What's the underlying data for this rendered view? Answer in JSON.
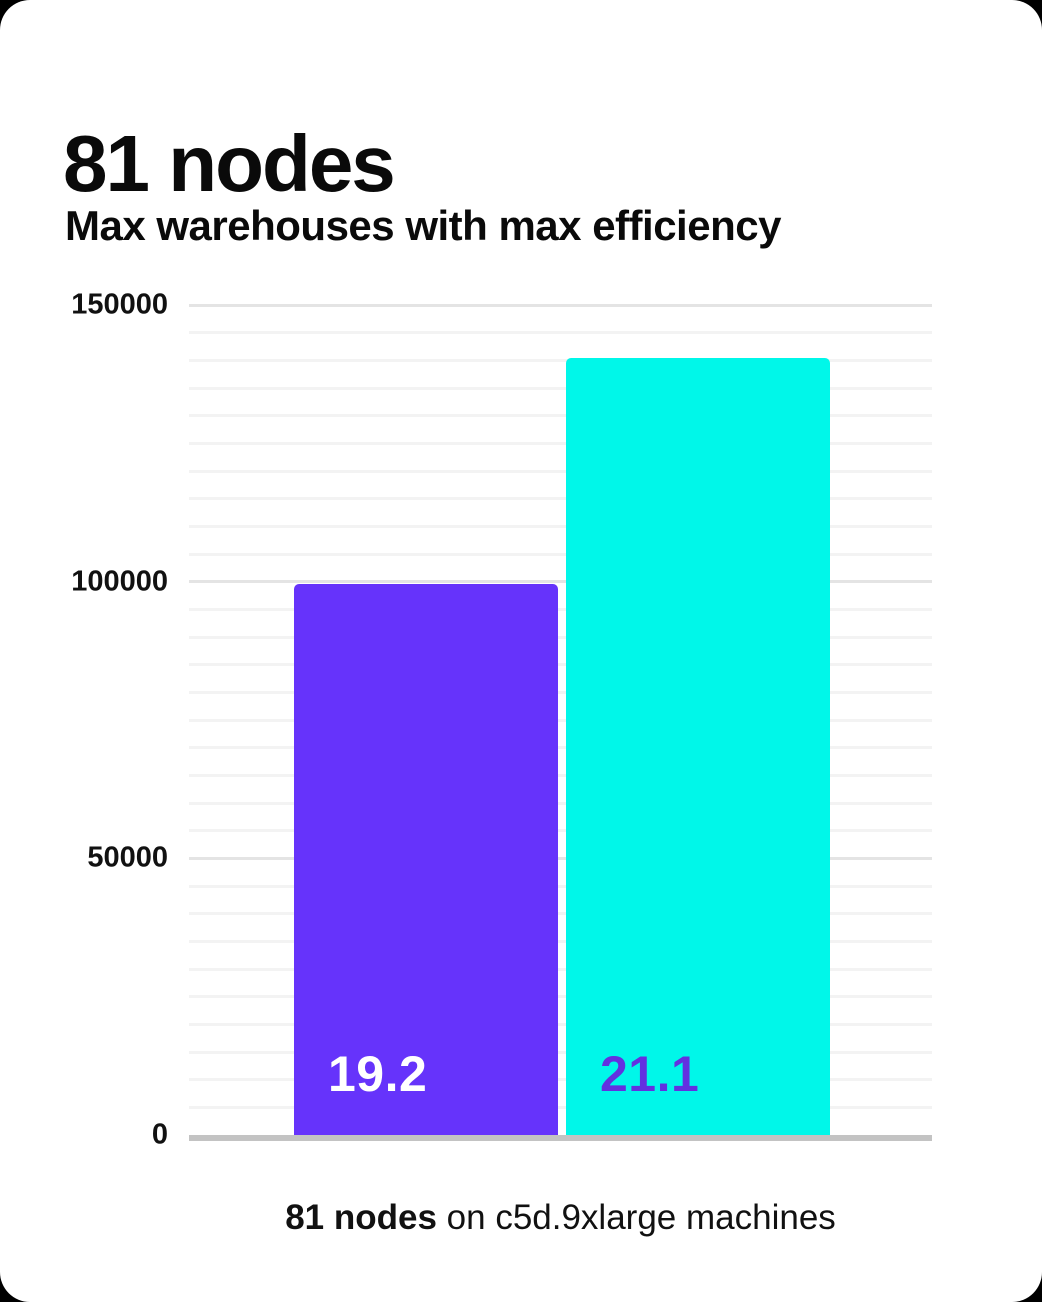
{
  "page": {
    "background_color": "#000000",
    "card_color": "#ffffff"
  },
  "header": {
    "title": "81 nodes",
    "subtitle": "Max warehouses with max efficiency"
  },
  "chart_data": {
    "type": "bar",
    "title": "81 nodes",
    "subtitle": "Max warehouses with max efficiency",
    "categories": [
      "19.2",
      "21.1"
    ],
    "values": [
      99500,
      140500
    ],
    "bar_colors": [
      "#6633fb",
      "#00f7e9"
    ],
    "bar_label_colors": [
      "#ffffff",
      "#6331e0"
    ],
    "xlabel": "",
    "ylabel": "",
    "ylim": [
      0,
      150000
    ],
    "ytick_values": [
      0,
      50000,
      100000,
      150000
    ],
    "ytick_labels": [
      "0",
      "50000",
      "100000",
      "150000"
    ],
    "minor_grid_step": 5000,
    "major_grid_step": 50000,
    "grid": true,
    "legend": false,
    "grid_color_major": "#e4e4e4",
    "grid_color_minor": "#f3f3f3",
    "axis_line_color": "#c3c3c3"
  },
  "footer": {
    "caption_bold": "81 nodes",
    "caption_rest": " on c5d.9xlarge machines"
  }
}
